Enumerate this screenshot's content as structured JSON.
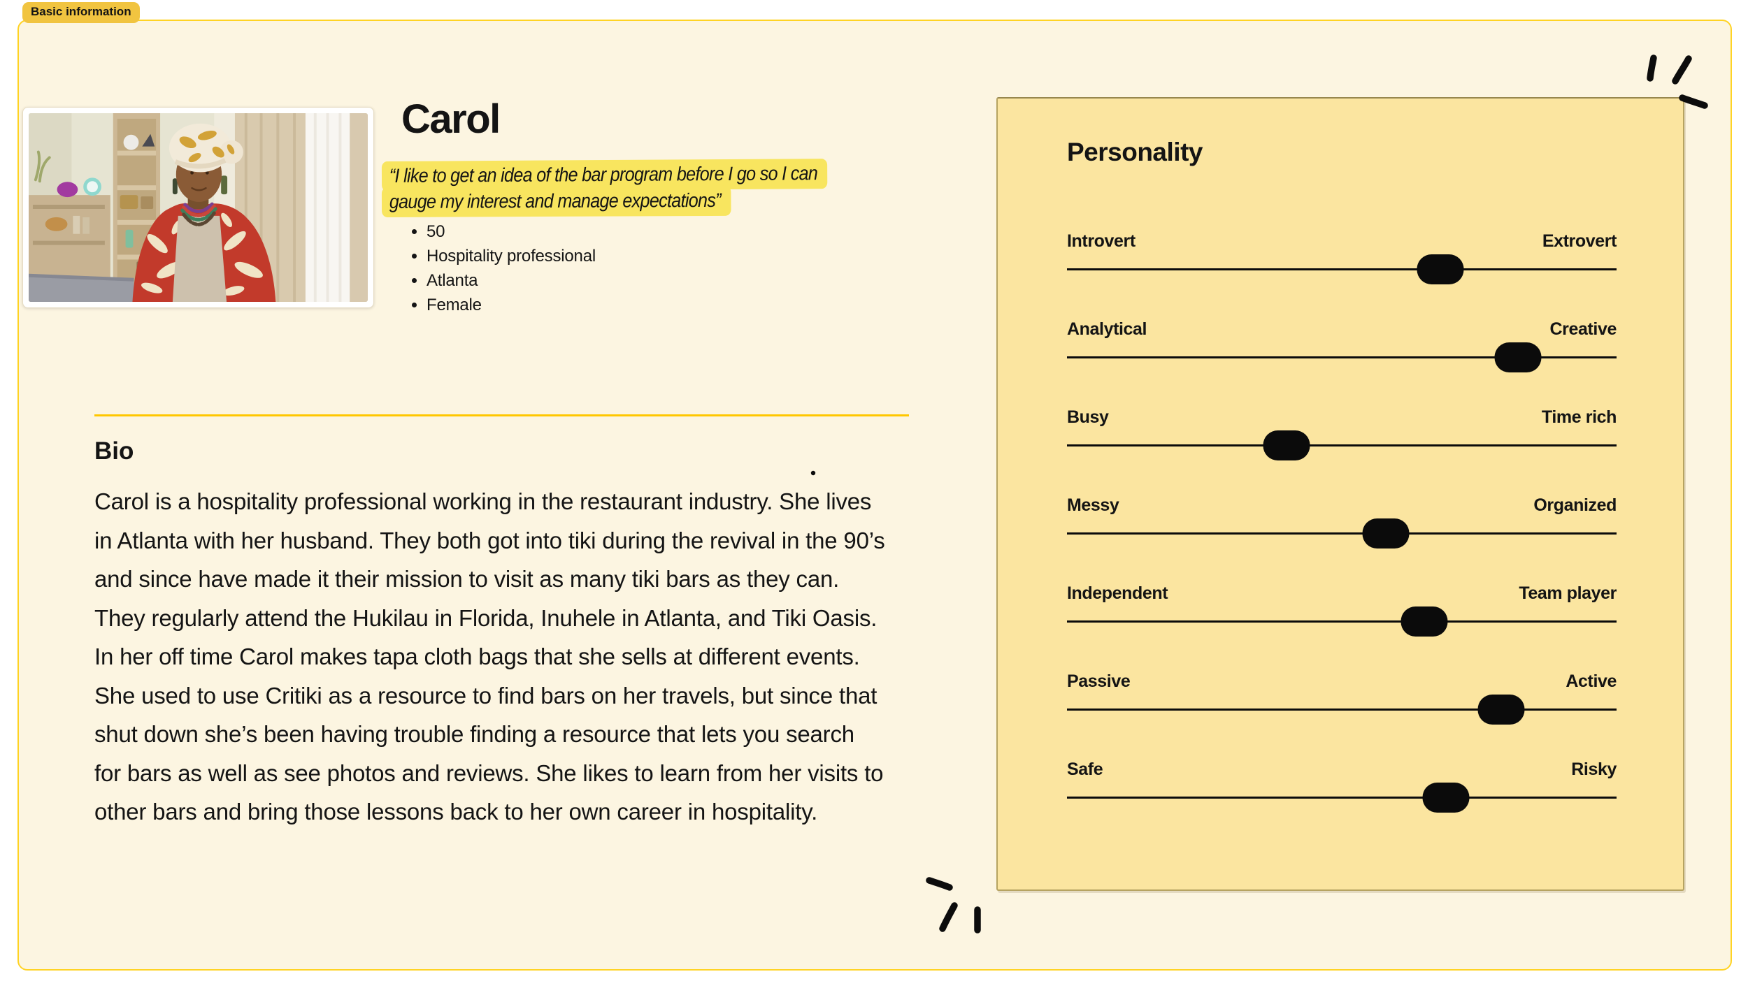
{
  "colors": {
    "card-bg": "#FCF5E1",
    "card-border": "#FFD324",
    "badge-bg": "#F1C440",
    "highlight": "#F8E55F",
    "divider": "#FFC700",
    "panel-bg": "#FBE5A0",
    "panel-border": "#B6A361",
    "ink": "#141414"
  },
  "badge": {
    "label": "Basic information"
  },
  "profile": {
    "name": "Carol",
    "quote_lines": [
      "“I like to get an idea of the bar program before I go so I can",
      "gauge my interest and manage expectations”"
    ],
    "details": [
      "50",
      "Hospitality professional",
      "Atlanta",
      "Female"
    ]
  },
  "bio": {
    "heading": "Bio",
    "text": "Carol is a hospitality professional working in the restaurant industry. She lives in Atlanta with her husband. They both got into tiki during the revival in the 90’s and since have made it their mission to visit as many tiki bars as they can. They regularly attend the Hukilau in Florida, Inuhele in Atlanta, and Tiki Oasis. In her off time Carol makes tapa cloth bags that she sells at different events. She used to use Critiki as a resource to find bars on her travels, but since that shut down she’s been having trouble finding a resource that lets you search for bars as well as see photos and reviews. She likes to learn from her visits to other bars and bring those lessons back to her own career in hospitality."
  },
  "personality": {
    "heading": "Personality",
    "sliders": [
      {
        "left": "Introvert",
        "right": "Extrovert",
        "value": 68
      },
      {
        "left": "Analytical",
        "right": "Creative",
        "value": 82
      },
      {
        "left": "Busy",
        "right": "Time rich",
        "value": 40
      },
      {
        "left": "Messy",
        "right": "Organized",
        "value": 58
      },
      {
        "left": "Independent",
        "right": "Team player",
        "value": 65
      },
      {
        "left": "Passive",
        "right": "Active",
        "value": 79
      },
      {
        "left": "Safe",
        "right": "Risky",
        "value": 69
      }
    ]
  }
}
